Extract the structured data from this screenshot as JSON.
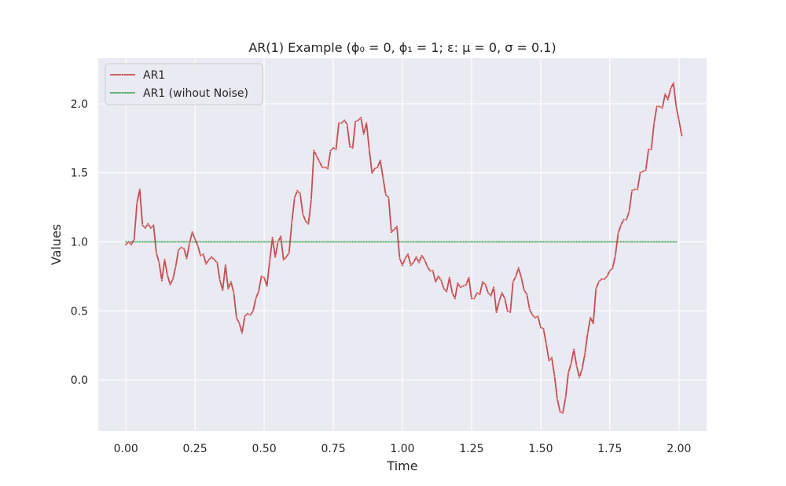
{
  "chart_data": {
    "type": "line",
    "title": "AR(1) Example (ϕ₀ = 0, ϕ₁ = 1; ε: μ = 0, σ = 0.1)",
    "xlabel": "Time",
    "ylabel": "Values",
    "xlim": [
      -0.1,
      2.1
    ],
    "ylim": [
      -0.37,
      2.33
    ],
    "x_ticks": [
      0.0,
      0.25,
      0.5,
      0.75,
      1.0,
      1.25,
      1.5,
      1.75,
      2.0
    ],
    "x_tick_labels": [
      "0.00",
      "0.25",
      "0.50",
      "0.75",
      "1.00",
      "1.25",
      "1.50",
      "1.75",
      "2.00"
    ],
    "y_ticks": [
      0.0,
      0.5,
      1.0,
      1.5,
      2.0
    ],
    "y_tick_labels": [
      "0.0",
      "0.5",
      "1.0",
      "1.5",
      "2.0"
    ],
    "grid": true,
    "legend_position": "top-left",
    "x_start": 0.0,
    "x_step": 0.01,
    "series": [
      {
        "name": "AR1",
        "color": "#c44e52",
        "values": [
          0.98,
          1.0,
          0.98,
          1.02,
          1.28,
          1.38,
          1.12,
          1.1,
          1.13,
          1.1,
          1.12,
          0.92,
          0.85,
          0.72,
          0.87,
          0.76,
          0.69,
          0.73,
          0.82,
          0.94,
          0.96,
          0.95,
          0.88,
          0.99,
          1.07,
          1.02,
          0.97,
          0.9,
          0.91,
          0.84,
          0.87,
          0.89,
          0.87,
          0.85,
          0.72,
          0.65,
          0.83,
          0.66,
          0.71,
          0.63,
          0.45,
          0.41,
          0.34,
          0.46,
          0.48,
          0.47,
          0.5,
          0.59,
          0.64,
          0.75,
          0.74,
          0.68,
          0.86,
          1.03,
          0.89,
          1.0,
          1.04,
          0.87,
          0.89,
          0.92,
          1.14,
          1.32,
          1.37,
          1.35,
          1.2,
          1.15,
          1.13,
          1.3,
          1.66,
          1.62,
          1.58,
          1.54,
          1.54,
          1.53,
          1.66,
          1.68,
          1.67,
          1.86,
          1.86,
          1.88,
          1.85,
          1.69,
          1.68,
          1.87,
          1.88,
          1.9,
          1.78,
          1.86,
          1.67,
          1.5,
          1.53,
          1.54,
          1.59,
          1.46,
          1.34,
          1.32,
          1.07,
          1.09,
          1.11,
          0.88,
          0.83,
          0.88,
          0.91,
          0.83,
          0.85,
          0.89,
          0.85,
          0.9,
          0.87,
          0.82,
          0.79,
          0.79,
          0.71,
          0.75,
          0.72,
          0.66,
          0.64,
          0.74,
          0.63,
          0.59,
          0.7,
          0.67,
          0.68,
          0.69,
          0.74,
          0.59,
          0.59,
          0.63,
          0.62,
          0.71,
          0.69,
          0.63,
          0.61,
          0.67,
          0.49,
          0.57,
          0.63,
          0.59,
          0.5,
          0.49,
          0.71,
          0.75,
          0.81,
          0.74,
          0.65,
          0.62,
          0.51,
          0.47,
          0.45,
          0.46,
          0.38,
          0.37,
          0.26,
          0.14,
          0.16,
          0.03,
          -0.14,
          -0.23,
          -0.24,
          -0.13,
          0.05,
          0.12,
          0.22,
          0.1,
          0.02,
          0.08,
          0.19,
          0.34,
          0.45,
          0.41,
          0.66,
          0.71,
          0.73,
          0.73,
          0.75,
          0.79,
          0.81,
          0.9,
          1.06,
          1.12,
          1.16,
          1.16,
          1.22,
          1.37,
          1.38,
          1.38,
          1.5,
          1.51,
          1.52,
          1.67,
          1.67,
          1.86,
          1.98,
          1.98,
          1.97,
          2.07,
          2.03,
          2.11,
          2.15,
          1.98,
          1.88,
          1.77
        ]
      },
      {
        "name": "AR1 (wihout Noise)",
        "color": "#55a868",
        "constant": 1.0,
        "count": 200
      }
    ]
  }
}
